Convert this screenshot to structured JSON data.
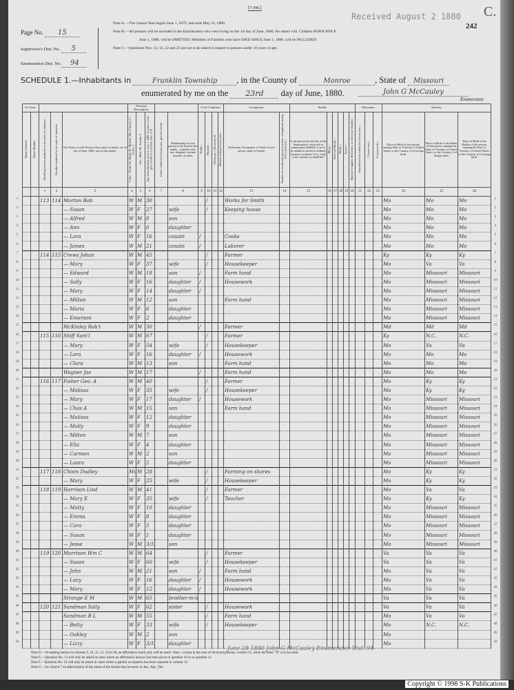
{
  "form_code": "[7-396.]",
  "stamp": "Received August 2 1880",
  "sheet_letter": "C.",
  "sheet_number": "242",
  "page_no": {
    "label": "Page No.",
    "value": "15"
  },
  "supervisor_dist": {
    "label": "Supervisor's Dist. No.",
    "value": "5"
  },
  "enumeration_dist": {
    "label": "Enumeration Dist. No.",
    "value": "94"
  },
  "notes_top": [
    "Note A.—The Census Year begins June 1, 1879, and ends May 31, 1880.",
    "Note B.—All persons will be included in the Enumeration who were living on the 1st day of June, 1880. No others will. Children BORN SINCE",
    "June 1, 1880, will be OMITTED. Members of Families who have DIED SINCE June 1, 1880, will be INCLUDED.",
    "Note C.—Questions Nos. 13, 14, 22 and 23 are not to be asked in respect to persons under 10 years of age."
  ],
  "schedule": {
    "title": "SCHEDULE 1.—Inhabitants in",
    "township": "Franklin Township",
    "county_label": ", in the County of",
    "county": "Monroe",
    "state_label": ", State of",
    "state": "Missouri",
    "enum_label": "enumerated by me on the",
    "day": "23rd",
    "month_label": "day of June, 1880.",
    "enumerator_signature": "John G McCauley",
    "enumerator_label": "Enumerator."
  },
  "groups": {
    "cities": "In Cities.",
    "personal": "Personal Description.",
    "civil": "Civil Condition.",
    "occupation": "Occupation.",
    "health": "Health.",
    "education": "Education.",
    "nativity": "Nativity."
  },
  "columns": [
    {
      "num": "",
      "label": "Name of Street."
    },
    {
      "num": "",
      "label": "House Number."
    },
    {
      "num": "1",
      "label": "Dwelling-houses numbered in the order of visitation."
    },
    {
      "num": "2",
      "label": "Families numbered in the order of visitation."
    },
    {
      "num": "3",
      "label": "The Name of each Person whose place of abode, on 1st day of June, 1880, was in this family."
    },
    {
      "num": "4",
      "label": "Color—White, W.; Black, B.; Mulatto, Mu.; Chinese, C.; Indian, I."
    },
    {
      "num": "5",
      "label": "Sex—Male, M.; Female, F."
    },
    {
      "num": "6",
      "label": "Age at last birthday prior to June 1, 1880. If under 1 year, give months in fractions, thus: 3/12."
    },
    {
      "num": "7",
      "label": "If born within the Census year, give the month."
    },
    {
      "num": "8",
      "label": "Relationship of each person to the head of this family—whether wife, son, daughter, servant, boarder, or other."
    },
    {
      "num": "9",
      "label": "Single, /"
    },
    {
      "num": "10",
      "label": "Married, /"
    },
    {
      "num": "11",
      "label": "Widowed, /; Divorced, D."
    },
    {
      "num": "12",
      "label": "Married during Census year, /"
    },
    {
      "num": "13",
      "label": "Profession, Occupation or Trade of each person, male or female."
    },
    {
      "num": "14",
      "label": "Number of months this person has been unemployed during the Census year."
    },
    {
      "num": "15",
      "label": "Is the person [on the day of the Enumerator's visit] sick or temporarily disabled, so as to be unable to attend to ordinary business or duties? If so, what is the sickness or disability?"
    },
    {
      "num": "16",
      "label": "Blind, /"
    },
    {
      "num": "17",
      "label": "Deaf and Dumb, /"
    },
    {
      "num": "18",
      "label": "Idiotic, /"
    },
    {
      "num": "19",
      "label": "Insane, /"
    },
    {
      "num": "20",
      "label": "Maimed, Crippled, Bedridden, or otherwise disabled, /"
    },
    {
      "num": "21",
      "label": "Attended school within the Census year, /"
    },
    {
      "num": "22",
      "label": "Cannot read, /"
    },
    {
      "num": "23",
      "label": "Cannot write, /"
    },
    {
      "num": "24",
      "label": "Place of Birth of this person, naming State or Territory of United States, or the Country, if of foreign birth."
    },
    {
      "num": "25",
      "label": "Place of Birth of the Father of this person, naming the State or Territory of United States, or the Country, if of foreign birth."
    },
    {
      "num": "26",
      "label": "Place of Birth of the Mother of this person, naming the State or Territory of United States, or the Country, if of foreign birth."
    }
  ],
  "rows": [
    {
      "dw": "113",
      "fam": "114",
      "name": "Morton Bob",
      "color": "W",
      "sex": "M",
      "age": "30",
      "rel": "",
      "s": "",
      "m": "/",
      "occ": "Works for Smith",
      "pob": "Mo",
      "fpob": "Mo",
      "mpob": "Mo"
    },
    {
      "dw": "",
      "fam": "",
      "name": "— Susan",
      "color": "W",
      "sex": "F",
      "age": "27",
      "rel": "wife",
      "s": "",
      "m": "/",
      "occ": "Keeping house",
      "pob": "Mo",
      "fpob": "Mo",
      "mpob": "Mo"
    },
    {
      "dw": "",
      "fam": "",
      "name": "— Alfred",
      "color": "W",
      "sex": "M",
      "age": "8",
      "rel": "son",
      "s": "",
      "m": "",
      "occ": "",
      "pob": "Mo",
      "fpob": "Mo",
      "mpob": "Mo"
    },
    {
      "dw": "",
      "fam": "",
      "name": "— Ann",
      "color": "W",
      "sex": "F",
      "age": "6",
      "rel": "daughter",
      "s": "",
      "m": "",
      "occ": "",
      "pob": "Mo",
      "fpob": "Mo",
      "mpob": "Mo"
    },
    {
      "dw": "",
      "fam": "",
      "name": "— Lora",
      "color": "W",
      "sex": "F",
      "age": "16",
      "rel": "cousin",
      "s": "/",
      "m": "",
      "occ": "Cooks",
      "pob": "Mo",
      "fpob": "Mo",
      "mpob": "Mo"
    },
    {
      "dw": "",
      "fam": "",
      "name": "— James",
      "color": "W",
      "sex": "M",
      "age": "21",
      "rel": "cousin",
      "s": "/",
      "m": "",
      "occ": "Laborer",
      "pob": "Mo",
      "fpob": "Mo",
      "mpob": "Mo"
    },
    {
      "dw": "114",
      "fam": "115",
      "name": "Crews Johan",
      "color": "W",
      "sex": "M",
      "age": "45",
      "rel": "",
      "s": "",
      "m": "/",
      "occ": "Farmer",
      "pob": "Ky",
      "fpob": "Ky",
      "mpob": "Ky"
    },
    {
      "dw": "",
      "fam": "",
      "name": "— Mary",
      "color": "W",
      "sex": "F",
      "age": "37",
      "rel": "wife",
      "s": "",
      "m": "/",
      "occ": "Housekeeper",
      "pob": "Mo",
      "fpob": "Va",
      "mpob": "Va"
    },
    {
      "dw": "",
      "fam": "",
      "name": "— Edward",
      "color": "W",
      "sex": "M",
      "age": "18",
      "rel": "son",
      "s": "/",
      "m": "",
      "occ": "Farm hand",
      "pob": "Mo",
      "fpob": "Missouri",
      "mpob": "Missouri"
    },
    {
      "dw": "",
      "fam": "",
      "name": "— Sally",
      "color": "W",
      "sex": "F",
      "age": "16",
      "rel": "daughter",
      "s": "/",
      "m": "",
      "occ": "Housework",
      "pob": "Mo",
      "fpob": "Missouri",
      "mpob": "Missouri"
    },
    {
      "dw": "",
      "fam": "",
      "name": "— Mary",
      "color": "W",
      "sex": "F",
      "age": "14",
      "rel": "daughter",
      "s": "/",
      "m": "",
      "occ": "",
      "pob": "Mo",
      "fpob": "Missouri",
      "mpob": "Missouri"
    },
    {
      "dw": "",
      "fam": "",
      "name": "— Milton",
      "color": "W",
      "sex": "M",
      "age": "12",
      "rel": "son",
      "s": "",
      "m": "",
      "occ": "Farm hand",
      "pob": "Mo",
      "fpob": "Missouri",
      "mpob": "Missouri"
    },
    {
      "dw": "",
      "fam": "",
      "name": "— Maria",
      "color": "W",
      "sex": "F",
      "age": "6",
      "rel": "daughter",
      "s": "",
      "m": "",
      "occ": "",
      "pob": "Mo",
      "fpob": "Missouri",
      "mpob": "Missouri"
    },
    {
      "dw": "",
      "fam": "",
      "name": "— Emerson",
      "color": "W",
      "sex": "F",
      "age": "2",
      "rel": "daughter",
      "s": "",
      "m": "",
      "occ": "",
      "pob": "Mo",
      "fpob": "Missouri",
      "mpob": "Missouri"
    },
    {
      "dw": "",
      "fam": "",
      "name": "McKinley Rob't",
      "color": "W",
      "sex": "M",
      "age": "30",
      "rel": "",
      "s": "/",
      "m": "",
      "occ": "Farmer",
      "pob": "Md",
      "fpob": "Md",
      "mpob": "Md"
    },
    {
      "dw": "115",
      "fam": "116",
      "name": "Shiff Sam'l",
      "color": "W",
      "sex": "M",
      "age": "67",
      "rel": "",
      "s": "",
      "m": "/",
      "occ": "Farmer",
      "pob": "Ky",
      "fpob": "N.C.",
      "mpob": "N.C."
    },
    {
      "dw": "",
      "fam": "",
      "name": "— Mary",
      "color": "W",
      "sex": "F",
      "age": "54",
      "rel": "wife",
      "s": "",
      "m": "/",
      "occ": "Housekeeper",
      "pob": "Mo",
      "fpob": "Va",
      "mpob": "Va"
    },
    {
      "dw": "",
      "fam": "",
      "name": "— Lora",
      "color": "W",
      "sex": "F",
      "age": "16",
      "rel": "daughter",
      "s": "/",
      "m": "",
      "occ": "Housework",
      "pob": "Mo",
      "fpob": "Mo",
      "mpob": "Mo"
    },
    {
      "dw": "",
      "fam": "",
      "name": "— Clara",
      "color": "W",
      "sex": "M",
      "age": "13",
      "rel": "son",
      "s": "",
      "m": "",
      "occ": "Farm hand",
      "pob": "Mo",
      "fpob": "Mo",
      "mpob": "Mo"
    },
    {
      "dw": "",
      "fam": "",
      "name": "Wagner Jas",
      "color": "W",
      "sex": "M",
      "age": "17",
      "rel": "",
      "s": "/",
      "m": "",
      "occ": "Farm hand",
      "pob": "Mo",
      "fpob": "Mo",
      "mpob": "Mo"
    },
    {
      "dw": "116",
      "fam": "117",
      "name": "Fisher Geo. A",
      "color": "W",
      "sex": "M",
      "age": "40",
      "rel": "",
      "s": "",
      "m": "/",
      "occ": "Farmer",
      "pob": "Mo",
      "fpob": "Ky",
      "mpob": "Ky"
    },
    {
      "dw": "",
      "fam": "",
      "name": "— Malissa",
      "color": "W",
      "sex": "F",
      "age": "35",
      "rel": "wife",
      "s": "",
      "m": "/",
      "occ": "Housekeeper",
      "pob": "Mo",
      "fpob": "Ky",
      "mpob": "Ky"
    },
    {
      "dw": "",
      "fam": "",
      "name": "— Mary",
      "color": "W",
      "sex": "F",
      "age": "17",
      "rel": "daughter",
      "s": "/",
      "m": "",
      "occ": "Housework",
      "pob": "Mo",
      "fpob": "Missouri",
      "mpob": "Missouri"
    },
    {
      "dw": "",
      "fam": "",
      "name": "— Chas A",
      "color": "W",
      "sex": "M",
      "age": "15",
      "rel": "son",
      "s": "",
      "m": "",
      "occ": "Farm hand",
      "pob": "Mo",
      "fpob": "Missouri",
      "mpob": "Missouri"
    },
    {
      "dw": "",
      "fam": "",
      "name": "— Malissa",
      "color": "W",
      "sex": "F",
      "age": "12",
      "rel": "daughter",
      "s": "",
      "m": "",
      "occ": "",
      "pob": "Mo",
      "fpob": "Missouri",
      "mpob": "Missouri"
    },
    {
      "dw": "",
      "fam": "",
      "name": "— Molly",
      "color": "W",
      "sex": "F",
      "age": "9",
      "rel": "daughter",
      "s": "",
      "m": "",
      "occ": "",
      "pob": "Mo",
      "fpob": "Missouri",
      "mpob": "Missouri"
    },
    {
      "dw": "",
      "fam": "",
      "name": "— Milton",
      "color": "W",
      "sex": "M",
      "age": "7",
      "rel": "son",
      "s": "",
      "m": "",
      "occ": "",
      "pob": "Mo",
      "fpob": "Missouri",
      "mpob": "Missouri"
    },
    {
      "dw": "",
      "fam": "",
      "name": "— Ella",
      "color": "W",
      "sex": "F",
      "age": "4",
      "rel": "daughter",
      "s": "",
      "m": "",
      "occ": "",
      "pob": "Mo",
      "fpob": "Missouri",
      "mpob": "Missouri"
    },
    {
      "dw": "",
      "fam": "",
      "name": "— Carmen",
      "color": "W",
      "sex": "M",
      "age": "2",
      "rel": "son",
      "s": "",
      "m": "",
      "occ": "",
      "pob": "Mo",
      "fpob": "Missouri",
      "mpob": "Missouri"
    },
    {
      "dw": "",
      "fam": "",
      "name": "— Laura",
      "color": "W",
      "sex": "F",
      "age": "2",
      "rel": "daughter",
      "s": "",
      "m": "",
      "occ": "",
      "pob": "Mo",
      "fpob": "Missouri",
      "mpob": "Missouri"
    },
    {
      "dw": "117",
      "fam": "118",
      "name": "Chism Dudley",
      "color": "Mu",
      "sex": "M",
      "age": "28",
      "rel": "",
      "s": "",
      "m": "/",
      "occ": "Farming on shares",
      "pob": "Mo",
      "fpob": "Ky",
      "mpob": "Ky"
    },
    {
      "dw": "",
      "fam": "",
      "name": "— Mary",
      "color": "W",
      "sex": "F",
      "age": "25",
      "rel": "wife",
      "s": "",
      "m": "/",
      "occ": "Housekeeper",
      "pob": "Mo",
      "fpob": "Ky",
      "mpob": "Ky"
    },
    {
      "dw": "118",
      "fam": "119",
      "name": "Harrison Lind",
      "color": "W",
      "sex": "M",
      "age": "41",
      "rel": "",
      "s": "",
      "m": "/",
      "occ": "Farmer",
      "pob": "Mo",
      "fpob": "Va",
      "mpob": "Va"
    },
    {
      "dw": "",
      "fam": "",
      "name": "— Mary E",
      "color": "W",
      "sex": "F",
      "age": "35",
      "rel": "wife",
      "s": "",
      "m": "/",
      "occ": "Teacher",
      "pob": "Mo",
      "fpob": "Ky",
      "mpob": "Ky"
    },
    {
      "dw": "",
      "fam": "",
      "name": "— Matty",
      "color": "W",
      "sex": "F",
      "age": "10",
      "rel": "daughter",
      "s": "",
      "m": "",
      "occ": "",
      "pob": "Mo",
      "fpob": "Missouri",
      "mpob": "Missouri"
    },
    {
      "dw": "",
      "fam": "",
      "name": "— Emma",
      "color": "W",
      "sex": "F",
      "age": "8",
      "rel": "daughter",
      "s": "",
      "m": "",
      "occ": "",
      "pob": "Mo",
      "fpob": "Missouri",
      "mpob": "Missouri"
    },
    {
      "dw": "",
      "fam": "",
      "name": "— Cora",
      "color": "W",
      "sex": "F",
      "age": "5",
      "rel": "daughter",
      "s": "",
      "m": "",
      "occ": "",
      "pob": "Mo",
      "fpob": "Missouri",
      "mpob": "Missouri"
    },
    {
      "dw": "",
      "fam": "",
      "name": "— Susan",
      "color": "W",
      "sex": "F",
      "age": "1",
      "rel": "daughter",
      "s": "",
      "m": "",
      "occ": "",
      "pob": "Mo",
      "fpob": "Missouri",
      "mpob": "Missouri"
    },
    {
      "dw": "",
      "fam": "",
      "name": "— Jesse",
      "color": "W",
      "sex": "M",
      "age": "3/12",
      "rel": "son",
      "s": "",
      "m": "",
      "occ": "",
      "pob": "Mo",
      "fpob": "Missouri",
      "mpob": "Missouri"
    },
    {
      "dw": "119",
      "fam": "120",
      "name": "Morrison Wm C",
      "color": "W",
      "sex": "M",
      "age": "64",
      "rel": "",
      "s": "",
      "m": "/",
      "occ": "Farmer",
      "pob": "Va",
      "fpob": "Va",
      "mpob": "Va"
    },
    {
      "dw": "",
      "fam": "",
      "name": "— Susan",
      "color": "W",
      "sex": "F",
      "age": "60",
      "rel": "wife",
      "s": "",
      "m": "/",
      "occ": "Housekeeper",
      "pob": "Va",
      "fpob": "Va",
      "mpob": "Va"
    },
    {
      "dw": "",
      "fam": "",
      "name": "— John",
      "color": "W",
      "sex": "M",
      "age": "21",
      "rel": "son",
      "s": "/",
      "m": "",
      "occ": "Farm hand",
      "pob": "Mo",
      "fpob": "Va",
      "mpob": "Va"
    },
    {
      "dw": "",
      "fam": "",
      "name": "— Lucy",
      "color": "W",
      "sex": "F",
      "age": "16",
      "rel": "daughter",
      "s": "/",
      "m": "",
      "occ": "Housework",
      "pob": "Mo",
      "fpob": "Va",
      "mpob": "Va"
    },
    {
      "dw": "",
      "fam": "",
      "name": "— Mary",
      "color": "W",
      "sex": "F",
      "age": "12",
      "rel": "daughter",
      "s": "/",
      "m": "",
      "occ": "Housework",
      "pob": "Mo",
      "fpob": "Va",
      "mpob": "Va"
    },
    {
      "dw": "",
      "fam": "",
      "name": "Strange E M",
      "color": "W",
      "sex": "M",
      "age": "65",
      "rel": "brother-in-law",
      "s": "",
      "m": "",
      "occ": "",
      "pob": "Va",
      "fpob": "Va",
      "mpob": "Va"
    },
    {
      "dw": "120",
      "fam": "121",
      "name": "Sandman Sally",
      "color": "W",
      "sex": "F",
      "age": "62",
      "rel": "sister",
      "s": "",
      "m": "/",
      "occ": "Housework",
      "pob": "Va",
      "fpob": "Va",
      "mpob": "Va"
    },
    {
      "dw": "",
      "fam": "",
      "name": "Sandman B L",
      "color": "W",
      "sex": "M",
      "age": "55",
      "rel": "",
      "s": "",
      "m": "/",
      "occ": "Farm hand",
      "pob": "Mo",
      "fpob": "Va",
      "mpob": "Va"
    },
    {
      "dw": "",
      "fam": "",
      "name": "— Betty",
      "color": "W",
      "sex": "F",
      "age": "33",
      "rel": "wife",
      "s": "",
      "m": "/",
      "occ": "Housekeeper",
      "pob": "Mo",
      "fpob": "N.C.",
      "mpob": "N.C."
    },
    {
      "dw": "",
      "fam": "",
      "name": "— Oakley",
      "color": "W",
      "sex": "M",
      "age": "2",
      "rel": "son",
      "s": "",
      "m": "",
      "occ": "",
      "pob": "Mo",
      "fpob": "",
      "mpob": ""
    },
    {
      "dw": "",
      "fam": "",
      "name": "— Lizzy",
      "color": "W",
      "sex": "F",
      "age": "3/12",
      "rel": "daughter",
      "s": "",
      "m": "",
      "occ": "",
      "pob": "Mo",
      "fpob": "",
      "mpob": ""
    }
  ],
  "family_start_rows": [
    1,
    7,
    15,
    16,
    20,
    21,
    31,
    33,
    40,
    45,
    46,
    47
  ],
  "footer_signature": "June 28 1880   John G McCauley   Enumerator Dist. 94",
  "notes_bottom": [
    "Note D.—In making entries in columns 9, 10, 11, 12, 16 to 20, an affirmative mark only will be used—thus /, except in the case of divorced persons, column 11, when the letter \"D\" is to be used.",
    "Note E.—Question No. 13 will only be asked in cases where an affirmative answer has been given to question 10 or to question 11.",
    "Note F.—Question No. 14 will only be asked in cases where a gainful occupation has been reported in column 13.",
    "Note G.—In column 7 an abbreviation of the name of the month may be used, as Jan., Apr., Dec."
  ],
  "copyright": "Copyright © 1998 S-K Publications"
}
